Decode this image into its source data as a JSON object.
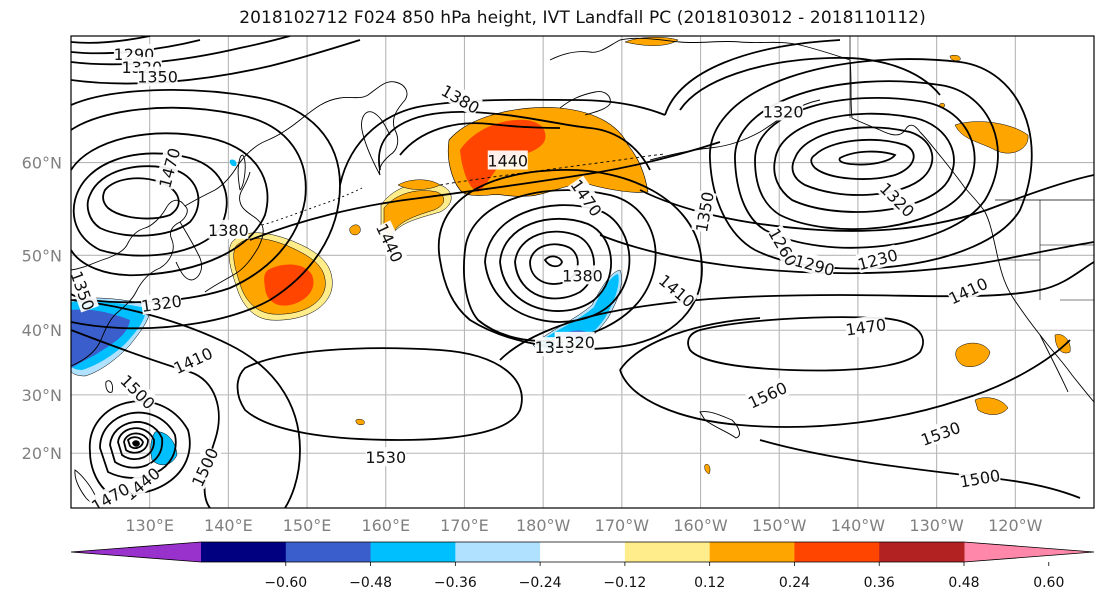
{
  "title": "2018102712 F024 850 hPa height, IVT Landfall PC (2018103012 - 2018110112)",
  "lat_labels": [
    {
      "text": "60°N",
      "lat": 60
    },
    {
      "text": "50°N",
      "lat": 50
    },
    {
      "text": "40°N",
      "lat": 40
    },
    {
      "text": "30°N",
      "lat": 30
    },
    {
      "text": "20°N",
      "lat": 20
    }
  ],
  "lon_labels": [
    {
      "text": "130°E",
      "lon": 130
    },
    {
      "text": "140°E",
      "lon": 140
    },
    {
      "text": "150°E",
      "lon": 150
    },
    {
      "text": "160°E",
      "lon": 160
    },
    {
      "text": "170°E",
      "lon": 170
    },
    {
      "text": "180°W",
      "lon": 180
    },
    {
      "text": "170°W",
      "lon": 190
    },
    {
      "text": "160°W",
      "lon": 200
    },
    {
      "text": "150°W",
      "lon": 210
    },
    {
      "text": "140°W",
      "lon": 220
    },
    {
      "text": "130°W",
      "lon": 230
    },
    {
      "text": "120°W",
      "lon": 240
    }
  ],
  "contour_labels": [
    {
      "text": "1290",
      "lon": 128,
      "lat": 68.8,
      "rot": 0
    },
    {
      "text": "1320",
      "lon": 129,
      "lat": 67.9,
      "rot": 0
    },
    {
      "text": "1350",
      "lon": 131,
      "lat": 67.2,
      "rot": 0
    },
    {
      "text": "1470",
      "lon": 132.5,
      "lat": 59.5,
      "rot": -75
    },
    {
      "text": "1380",
      "lon": 140,
      "lat": 53,
      "rot": 0
    },
    {
      "text": "1350",
      "lon": 121.5,
      "lat": 45.5,
      "rot": 70
    },
    {
      "text": "1320",
      "lon": 131.5,
      "lat": 43.8,
      "rot": -8
    },
    {
      "text": "1410",
      "lon": 135.5,
      "lat": 35.5,
      "rot": -25
    },
    {
      "text": "1500",
      "lon": 128.5,
      "lat": 30.5,
      "rot": 45
    },
    {
      "text": "1440",
      "lon": 160.5,
      "lat": 51.5,
      "rot": 65
    },
    {
      "text": "1380",
      "lon": 169.5,
      "lat": 65.5,
      "rot": 30
    },
    {
      "text": "1440",
      "lon": 175.5,
      "lat": 60.2,
      "rot": 0
    },
    {
      "text": "1470",
      "lon": 185.5,
      "lat": 56.5,
      "rot": 55
    },
    {
      "text": "1380",
      "lon": 185,
      "lat": 47.5,
      "rot": 0
    },
    {
      "text": "1410",
      "lon": 197,
      "lat": 45.5,
      "rot": 40
    },
    {
      "text": "1350",
      "lon": 181.5,
      "lat": 37.5,
      "rot": 0
    },
    {
      "text": "1320",
      "lon": 184,
      "lat": 38.3,
      "rot": 0
    },
    {
      "text": "1320",
      "lon": 210.5,
      "lat": 64.5,
      "rot": 0
    },
    {
      "text": "1350",
      "lon": 200.5,
      "lat": 55,
      "rot": -80
    },
    {
      "text": "1260",
      "lon": 210.5,
      "lat": 51,
      "rot": 60
    },
    {
      "text": "1290",
      "lon": 214.5,
      "lat": 48.8,
      "rot": 15
    },
    {
      "text": "1230",
      "lon": 222.5,
      "lat": 49.5,
      "rot": -15
    },
    {
      "text": "1320",
      "lon": 225,
      "lat": 56.3,
      "rot": 45
    },
    {
      "text": "1410",
      "lon": 234,
      "lat": 45.5,
      "rot": -25
    },
    {
      "text": "1470",
      "lon": 221,
      "lat": 40.5,
      "rot": -8
    },
    {
      "text": "1560",
      "lon": 208.5,
      "lat": 30,
      "rot": -25
    },
    {
      "text": "1530",
      "lon": 230.5,
      "lat": 23.5,
      "rot": -20
    },
    {
      "text": "1500",
      "lon": 235.5,
      "lat": 15.5,
      "rot": -10
    },
    {
      "text": "1530",
      "lon": 160,
      "lat": 19.3,
      "rot": 0
    },
    {
      "text": "1500",
      "lon": 137,
      "lat": 17.5,
      "rot": -65
    },
    {
      "text": "1440",
      "lon": 129,
      "lat": 14.5,
      "rot": -40
    },
    {
      "text": "1470",
      "lon": 125,
      "lat": 12,
      "rot": -30
    }
  ],
  "colorbar": {
    "colors": [
      "#9932CC",
      "#000080",
      "#3A5FCD",
      "#00BFFF",
      "#B0E2FF",
      "#FFFFFF",
      "#FFEC8B",
      "#FFA500",
      "#FF4500",
      "#B22222",
      "#FF88AA"
    ],
    "ticks": [
      "−0.60",
      "−0.48",
      "−0.36",
      "−0.24",
      "−0.12",
      "0.12",
      "0.24",
      "0.36",
      "0.48",
      "0.60"
    ]
  }
}
